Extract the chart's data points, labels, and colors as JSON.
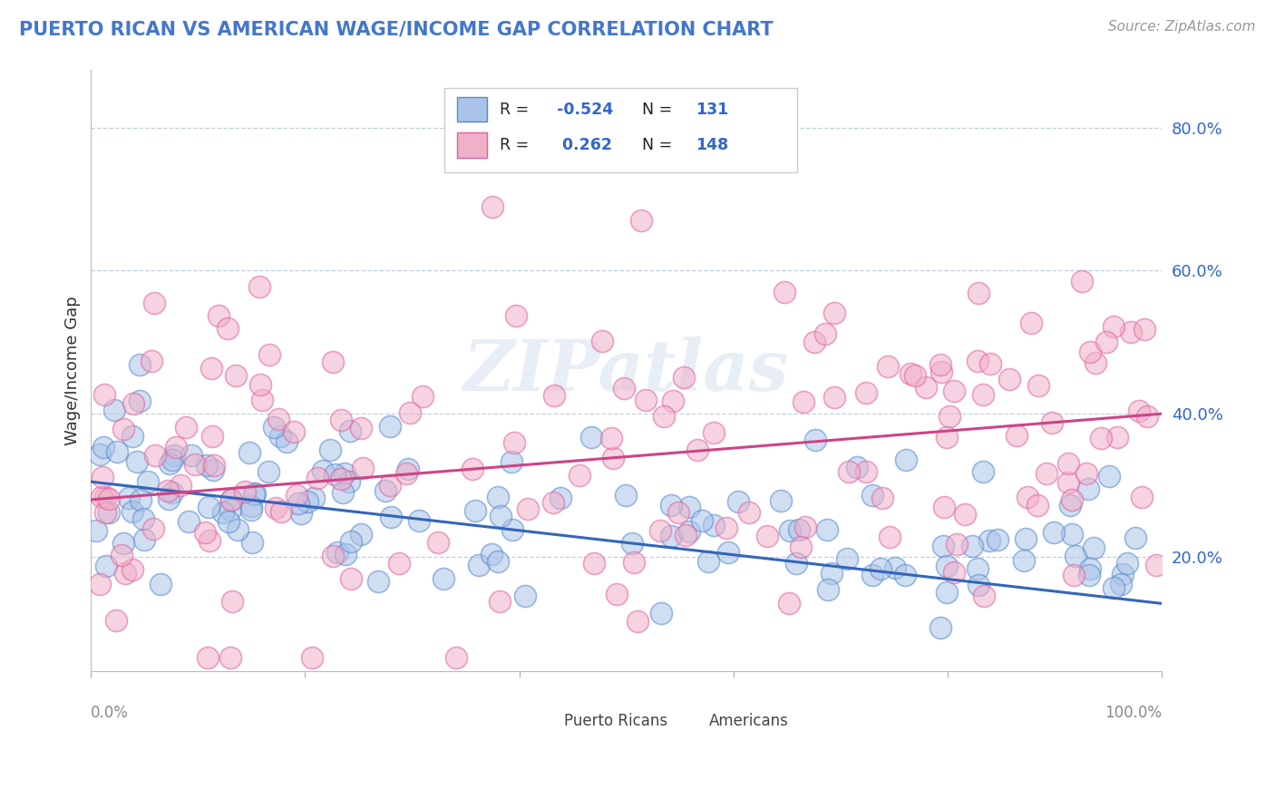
{
  "title": "PUERTO RICAN VS AMERICAN WAGE/INCOME GAP CORRELATION CHART",
  "source": "Source: ZipAtlas.com",
  "ylabel": "Wage/Income Gap",
  "yticks": [
    0.2,
    0.4,
    0.6,
    0.8
  ],
  "ytick_labels": [
    "20.0%",
    "40.0%",
    "60.0%",
    "80.0%"
  ],
  "xlim": [
    0.0,
    1.0
  ],
  "ylim": [
    0.04,
    0.88
  ],
  "blue_R": -0.524,
  "blue_N": 131,
  "pink_R": 0.262,
  "pink_N": 148,
  "blue_fill_color": "#aac4e8",
  "pink_fill_color": "#f0b0c8",
  "blue_edge_color": "#5588cc",
  "pink_edge_color": "#e060a0",
  "blue_line_color": "#3366bb",
  "pink_line_color": "#cc4488",
  "legend_R_color": "#3366cc",
  "legend_N_color": "#3366cc",
  "watermark": "ZIPatlas",
  "background_color": "#ffffff",
  "grid_color": "#c0d0e0",
  "title_color": "#4477cc",
  "ylabel_color": "#333333",
  "tick_color": "#888888",
  "blue_trend_start_y": 0.305,
  "blue_trend_end_y": 0.135,
  "pink_trend_start_y": 0.28,
  "pink_trend_end_y": 0.4
}
